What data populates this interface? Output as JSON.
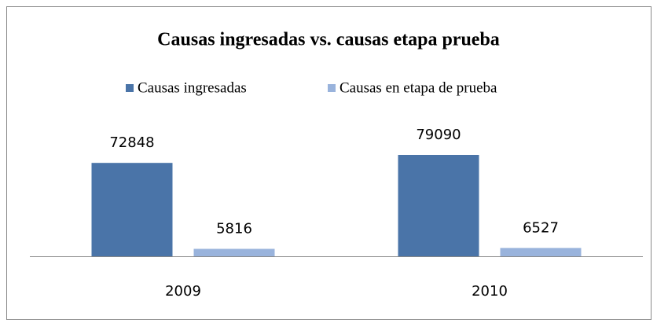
{
  "chart_data": {
    "type": "bar",
    "title": "Causas ingresadas vs. causas etapa prueba",
    "categories": [
      "2009",
      "2010"
    ],
    "series": [
      {
        "name": "Causas ingresadas",
        "color": "#4a74a8",
        "values": [
          72848,
          79090
        ]
      },
      {
        "name": "Causas en etapa de prueba",
        "color": "#99b3dc",
        "values": [
          5816,
          6527
        ]
      }
    ]
  }
}
